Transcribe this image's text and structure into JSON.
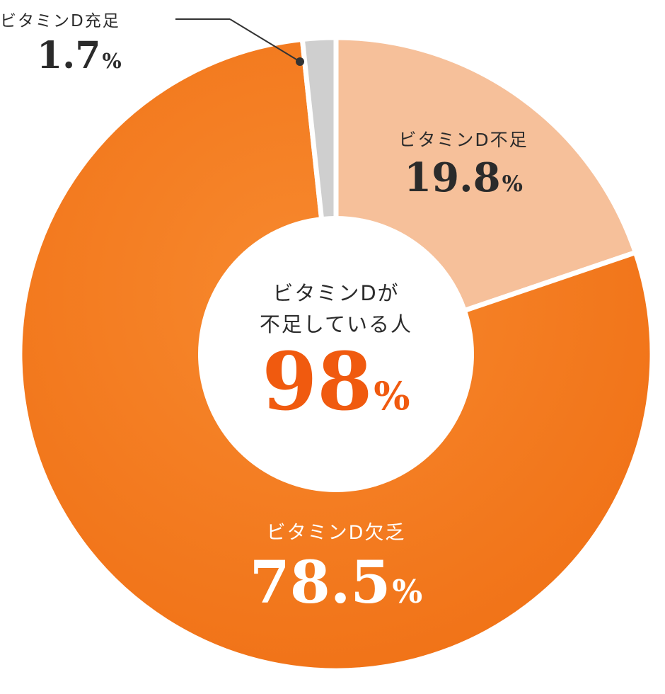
{
  "chart_data": {
    "type": "pie",
    "title": "",
    "slices": [
      {
        "label": "ビタミンD不足",
        "value": 19.8,
        "value_text": "19.8",
        "unit": "%",
        "color": "#f6c09a"
      },
      {
        "label": "ビタミンD欠乏",
        "value": 78.5,
        "value_text": "78.5",
        "unit": "%",
        "color": "#f47e20"
      },
      {
        "label": "ビタミンD充足",
        "value": 1.7,
        "value_text": "1.7",
        "unit": "%",
        "color": "#cfcfcf"
      }
    ],
    "center": {
      "line1": "ビタミンDが",
      "line2": "不足している人",
      "value": "98",
      "unit": "%",
      "color": "#f05a0f"
    },
    "legend": "none",
    "grid": false
  }
}
